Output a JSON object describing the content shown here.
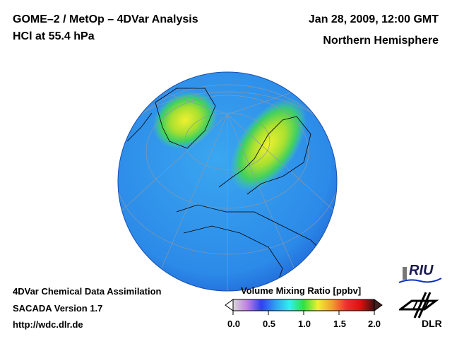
{
  "header": {
    "title_line1": "GOME–2 / MetOp – 4DVar Analysis",
    "title_line2": "HCl at 55.4 hPa",
    "date": "Jan 28, 2009, 12:00 GMT",
    "region": "Northern Hemisphere"
  },
  "footer": {
    "line1": "4DVar Chemical Data Assimilation",
    "line2": "SACADA Version 1.7",
    "url": "http://wdc.dlr.de"
  },
  "colorbar": {
    "label": "Volume Mixing Ratio [ppbv]",
    "ticks": [
      "0.0",
      "0.5",
      "1.0",
      "1.5",
      "2.0"
    ],
    "range": [
      0.0,
      2.0
    ],
    "colors": [
      "#d8d8d8",
      "#c080e0",
      "#3040f0",
      "#30a0f0",
      "#30f0f0",
      "#30e040",
      "#f0f030",
      "#f0a030",
      "#f03030",
      "#e01010",
      "#401010"
    ]
  },
  "logos": {
    "riu": "RIU",
    "dlr": "DLR"
  }
}
